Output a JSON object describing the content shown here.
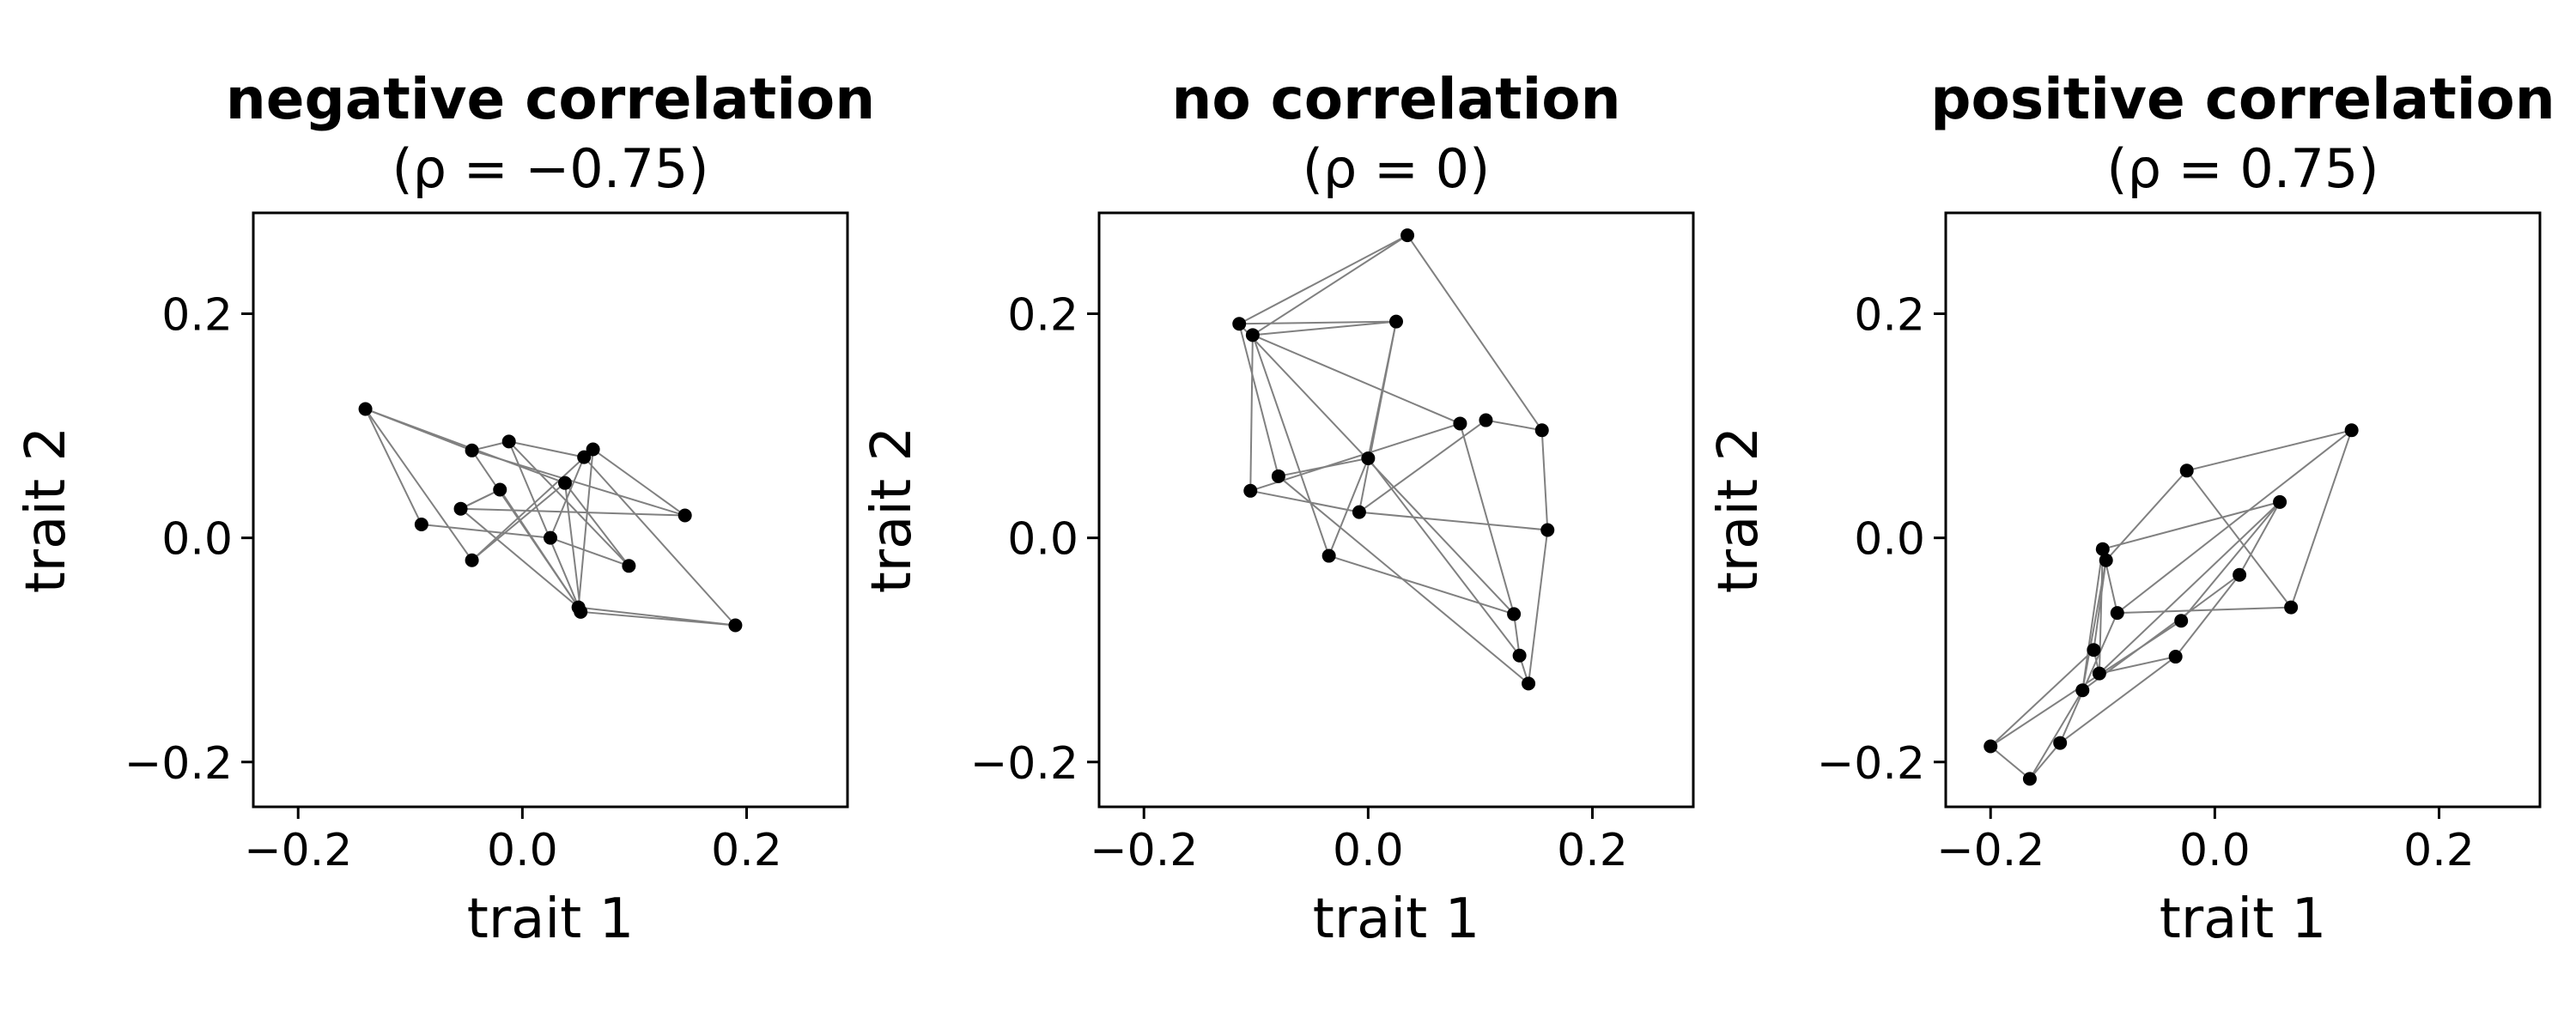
{
  "chart_data": [
    {
      "type": "scatter",
      "title": "negative correlation",
      "subtitle": "(ρ = −0.75)",
      "xlabel": "trait 1",
      "ylabel": "trait 2",
      "xlim": [
        -0.24,
        0.29
      ],
      "ylim": [
        -0.24,
        0.29
      ],
      "xticks": [
        -0.2,
        0.0,
        0.2
      ],
      "yticks": [
        -0.2,
        0.0,
        0.2
      ],
      "xtick_labels": [
        "−0.2",
        "0.0",
        "0.2"
      ],
      "ytick_labels": [
        "−0.2",
        "0.0",
        "0.2"
      ],
      "grid": false,
      "points": [
        {
          "x": -0.14,
          "y": 0.115
        },
        {
          "x": -0.045,
          "y": 0.078
        },
        {
          "x": -0.012,
          "y": 0.086
        },
        {
          "x": 0.055,
          "y": 0.072
        },
        {
          "x": 0.063,
          "y": 0.079
        },
        {
          "x": 0.038,
          "y": 0.049
        },
        {
          "x": -0.02,
          "y": 0.043
        },
        {
          "x": -0.09,
          "y": 0.012
        },
        {
          "x": -0.055,
          "y": 0.026
        },
        {
          "x": 0.025,
          "y": 0.0
        },
        {
          "x": 0.145,
          "y": 0.02
        },
        {
          "x": -0.045,
          "y": -0.02
        },
        {
          "x": 0.095,
          "y": -0.025
        },
        {
          "x": 0.05,
          "y": -0.062
        },
        {
          "x": 0.052,
          "y": -0.066
        },
        {
          "x": 0.19,
          "y": -0.078
        }
      ],
      "edges": [
        [
          0,
          1
        ],
        [
          0,
          5
        ],
        [
          0,
          7
        ],
        [
          0,
          11
        ],
        [
          1,
          2
        ],
        [
          1,
          10
        ],
        [
          1,
          13
        ],
        [
          2,
          3
        ],
        [
          2,
          14
        ],
        [
          3,
          9
        ],
        [
          4,
          11
        ],
        [
          4,
          10
        ],
        [
          4,
          13
        ],
        [
          5,
          12
        ],
        [
          6,
          13
        ],
        [
          7,
          9
        ],
        [
          8,
          6
        ],
        [
          8,
          10
        ],
        [
          8,
          13
        ],
        [
          9,
          12
        ],
        [
          11,
          5
        ],
        [
          13,
          15
        ],
        [
          14,
          15
        ],
        [
          3,
          15
        ],
        [
          2,
          12
        ],
        [
          6,
          8
        ],
        [
          5,
          14
        ]
      ]
    },
    {
      "type": "scatter",
      "title": "no correlation",
      "subtitle": "(ρ = 0)",
      "xlabel": "trait 1",
      "ylabel": "trait 2",
      "xlim": [
        -0.24,
        0.29
      ],
      "ylim": [
        -0.24,
        0.29
      ],
      "xticks": [
        -0.2,
        0.0,
        0.2
      ],
      "yticks": [
        -0.2,
        0.0,
        0.2
      ],
      "xtick_labels": [
        "−0.2",
        "0.0",
        "0.2"
      ],
      "ytick_labels": [
        "−0.2",
        "0.0",
        "0.2"
      ],
      "grid": false,
      "points": [
        {
          "x": 0.035,
          "y": 0.27
        },
        {
          "x": -0.115,
          "y": 0.191
        },
        {
          "x": -0.103,
          "y": 0.181
        },
        {
          "x": 0.025,
          "y": 0.193
        },
        {
          "x": 0.082,
          "y": 0.102
        },
        {
          "x": 0.105,
          "y": 0.105
        },
        {
          "x": 0.155,
          "y": 0.096
        },
        {
          "x": 0.0,
          "y": 0.071
        },
        {
          "x": -0.08,
          "y": 0.055
        },
        {
          "x": -0.105,
          "y": 0.042
        },
        {
          "x": -0.008,
          "y": 0.023
        },
        {
          "x": 0.16,
          "y": 0.007
        },
        {
          "x": -0.035,
          "y": -0.016
        },
        {
          "x": 0.13,
          "y": -0.068
        },
        {
          "x": 0.135,
          "y": -0.105
        },
        {
          "x": 0.143,
          "y": -0.13
        }
      ],
      "edges": [
        [
          0,
          1
        ],
        [
          0,
          2
        ],
        [
          0,
          6
        ],
        [
          1,
          3
        ],
        [
          1,
          8
        ],
        [
          1,
          13
        ],
        [
          2,
          3
        ],
        [
          2,
          9
        ],
        [
          2,
          12
        ],
        [
          2,
          4
        ],
        [
          3,
          7
        ],
        [
          3,
          10
        ],
        [
          4,
          13
        ],
        [
          5,
          6
        ],
        [
          5,
          10
        ],
        [
          6,
          11
        ],
        [
          7,
          12
        ],
        [
          7,
          14
        ],
        [
          8,
          7
        ],
        [
          8,
          15
        ],
        [
          9,
          10
        ],
        [
          10,
          11
        ],
        [
          11,
          15
        ],
        [
          12,
          13
        ],
        [
          13,
          14
        ],
        [
          14,
          15
        ],
        [
          9,
          4
        ]
      ]
    },
    {
      "type": "scatter",
      "title": "positive correlation",
      "subtitle": "(ρ = 0.75)",
      "xlabel": "trait 1",
      "ylabel": "trait 2",
      "xlim": [
        -0.24,
        0.29
      ],
      "ylim": [
        -0.24,
        0.29
      ],
      "xticks": [
        -0.2,
        0.0,
        0.2
      ],
      "yticks": [
        -0.2,
        0.0,
        0.2
      ],
      "xtick_labels": [
        "−0.2",
        "0.0",
        "0.2"
      ],
      "ytick_labels": [
        "−0.2",
        "0.0",
        "0.2"
      ],
      "grid": false,
      "points": [
        {
          "x": 0.122,
          "y": 0.096
        },
        {
          "x": -0.025,
          "y": 0.06
        },
        {
          "x": 0.058,
          "y": 0.032
        },
        {
          "x": -0.1,
          "y": -0.01
        },
        {
          "x": -0.097,
          "y": -0.02
        },
        {
          "x": 0.022,
          "y": -0.033
        },
        {
          "x": -0.087,
          "y": -0.067
        },
        {
          "x": 0.068,
          "y": -0.062
        },
        {
          "x": -0.03,
          "y": -0.074
        },
        {
          "x": -0.108,
          "y": -0.1
        },
        {
          "x": -0.103,
          "y": -0.121
        },
        {
          "x": -0.035,
          "y": -0.106
        },
        {
          "x": -0.118,
          "y": -0.136
        },
        {
          "x": -0.138,
          "y": -0.183
        },
        {
          "x": -0.2,
          "y": -0.186
        },
        {
          "x": -0.165,
          "y": -0.215
        }
      ],
      "edges": [
        [
          0,
          1
        ],
        [
          0,
          6
        ],
        [
          0,
          7
        ],
        [
          1,
          4
        ],
        [
          1,
          7
        ],
        [
          2,
          3
        ],
        [
          2,
          8
        ],
        [
          2,
          10
        ],
        [
          3,
          6
        ],
        [
          3,
          12
        ],
        [
          4,
          9
        ],
        [
          5,
          11
        ],
        [
          5,
          12
        ],
        [
          6,
          7
        ],
        [
          6,
          13
        ],
        [
          8,
          14
        ],
        [
          9,
          10
        ],
        [
          10,
          11
        ],
        [
          11,
          13
        ],
        [
          12,
          15
        ],
        [
          13,
          15
        ],
        [
          14,
          9
        ],
        [
          14,
          15
        ],
        [
          4,
          12
        ],
        [
          5,
          2
        ],
        [
          3,
          10
        ]
      ]
    }
  ]
}
